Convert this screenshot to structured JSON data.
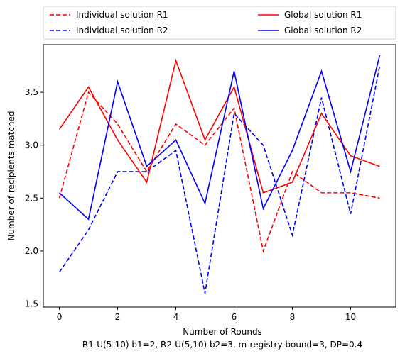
{
  "chart_data": {
    "type": "line",
    "title": "",
    "xlabel": "Number of Rounds",
    "caption": "R1-U(5-10) b1=2, R2-U(5,10) b2=3, m-registry bound=3, DP=0.4",
    "ylabel": "Number of recipients matched",
    "x": [
      0,
      1,
      2,
      3,
      4,
      5,
      6,
      7,
      8,
      9,
      10,
      11
    ],
    "xlim": [
      -0.55,
      11.55
    ],
    "ylim": [
      1.47,
      3.95
    ],
    "xticks": [
      0,
      2,
      4,
      6,
      8,
      10
    ],
    "yticks": [
      1.5,
      2.0,
      2.5,
      3.0,
      3.5
    ],
    "xtick_labels": [
      "0",
      "2",
      "4",
      "6",
      "8",
      "10"
    ],
    "ytick_labels": [
      "1.5",
      "2.0",
      "2.5",
      "3.0",
      "3.5"
    ],
    "grid": false,
    "legend_placement": "top, above plot, two columns",
    "series": [
      {
        "name": "Individual solution R1",
        "color": "#ff0000",
        "dash": "dashed",
        "values": [
          2.5,
          3.5,
          3.2,
          2.75,
          3.2,
          3.0,
          3.35,
          2.0,
          2.75,
          2.55,
          2.55,
          2.5
        ]
      },
      {
        "name": "Individual solution R2",
        "color": "#0000ff",
        "dash": "dashed",
        "values": [
          1.8,
          2.2,
          2.75,
          2.75,
          2.95,
          1.6,
          3.3,
          3.0,
          2.15,
          3.45,
          2.35,
          3.75
        ]
      },
      {
        "name": "Global solution R1",
        "color": "#ff0000",
        "dash": "solid",
        "values": [
          3.15,
          3.55,
          3.05,
          2.65,
          3.8,
          3.05,
          3.55,
          2.55,
          2.65,
          3.3,
          2.9,
          2.8
        ]
      },
      {
        "name": "Global solution R2",
        "color": "#0000ff",
        "dash": "solid",
        "values": [
          2.55,
          2.3,
          3.6,
          2.8,
          3.05,
          2.45,
          3.7,
          2.4,
          2.95,
          3.7,
          2.75,
          3.85
        ]
      }
    ]
  }
}
